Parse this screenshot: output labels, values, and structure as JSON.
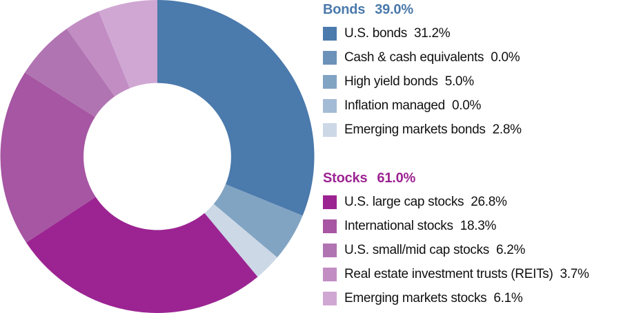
{
  "chart_data": {
    "type": "pie",
    "subtype": "donut",
    "title": "",
    "start_angle_deg": 0,
    "direction": "clockwise",
    "inner_radius_ratio": 0.47,
    "legend_position": "right",
    "groups": [
      {
        "label": "Bonds",
        "value": 39.0,
        "value_label": "39.0%",
        "color": "#4A79AB",
        "items": [
          {
            "label": "U.S. bonds",
            "value": 31.2,
            "value_label": "31.2%",
            "color": "#4B7AAC"
          },
          {
            "label": "Cash & cash equivalents",
            "value": 0.0,
            "value_label": "0.0%",
            "color": "#6C92BA"
          },
          {
            "label": "High yield bonds",
            "value": 5.0,
            "value_label": "5.0%",
            "color": "#82A4C3"
          },
          {
            "label": "Inflation managed",
            "value": 0.0,
            "value_label": "0.0%",
            "color": "#A3BBD4"
          },
          {
            "label": "Emerging markets bonds",
            "value": 2.8,
            "value_label": "2.8%",
            "color": "#CCD8E6"
          }
        ]
      },
      {
        "label": "Stocks",
        "value": 61.0,
        "value_label": "61.0%",
        "color": "#9C2492",
        "items": [
          {
            "label": "U.S. large cap stocks",
            "value": 26.8,
            "value_label": "26.8%",
            "color": "#9B2492"
          },
          {
            "label": "International stocks",
            "value": 18.3,
            "value_label": "18.3%",
            "color": "#A656A2"
          },
          {
            "label": "U.S. small/mid cap stocks",
            "value": 6.2,
            "value_label": "6.2%",
            "color": "#B174B2"
          },
          {
            "label": "Real estate investment trusts (REITs)",
            "value": 3.7,
            "value_label": "3.7%",
            "color": "#C18DC3"
          },
          {
            "label": "Emerging markets stocks",
            "value": 6.1,
            "value_label": "6.1%",
            "color": "#D0A7D3"
          }
        ]
      }
    ]
  }
}
